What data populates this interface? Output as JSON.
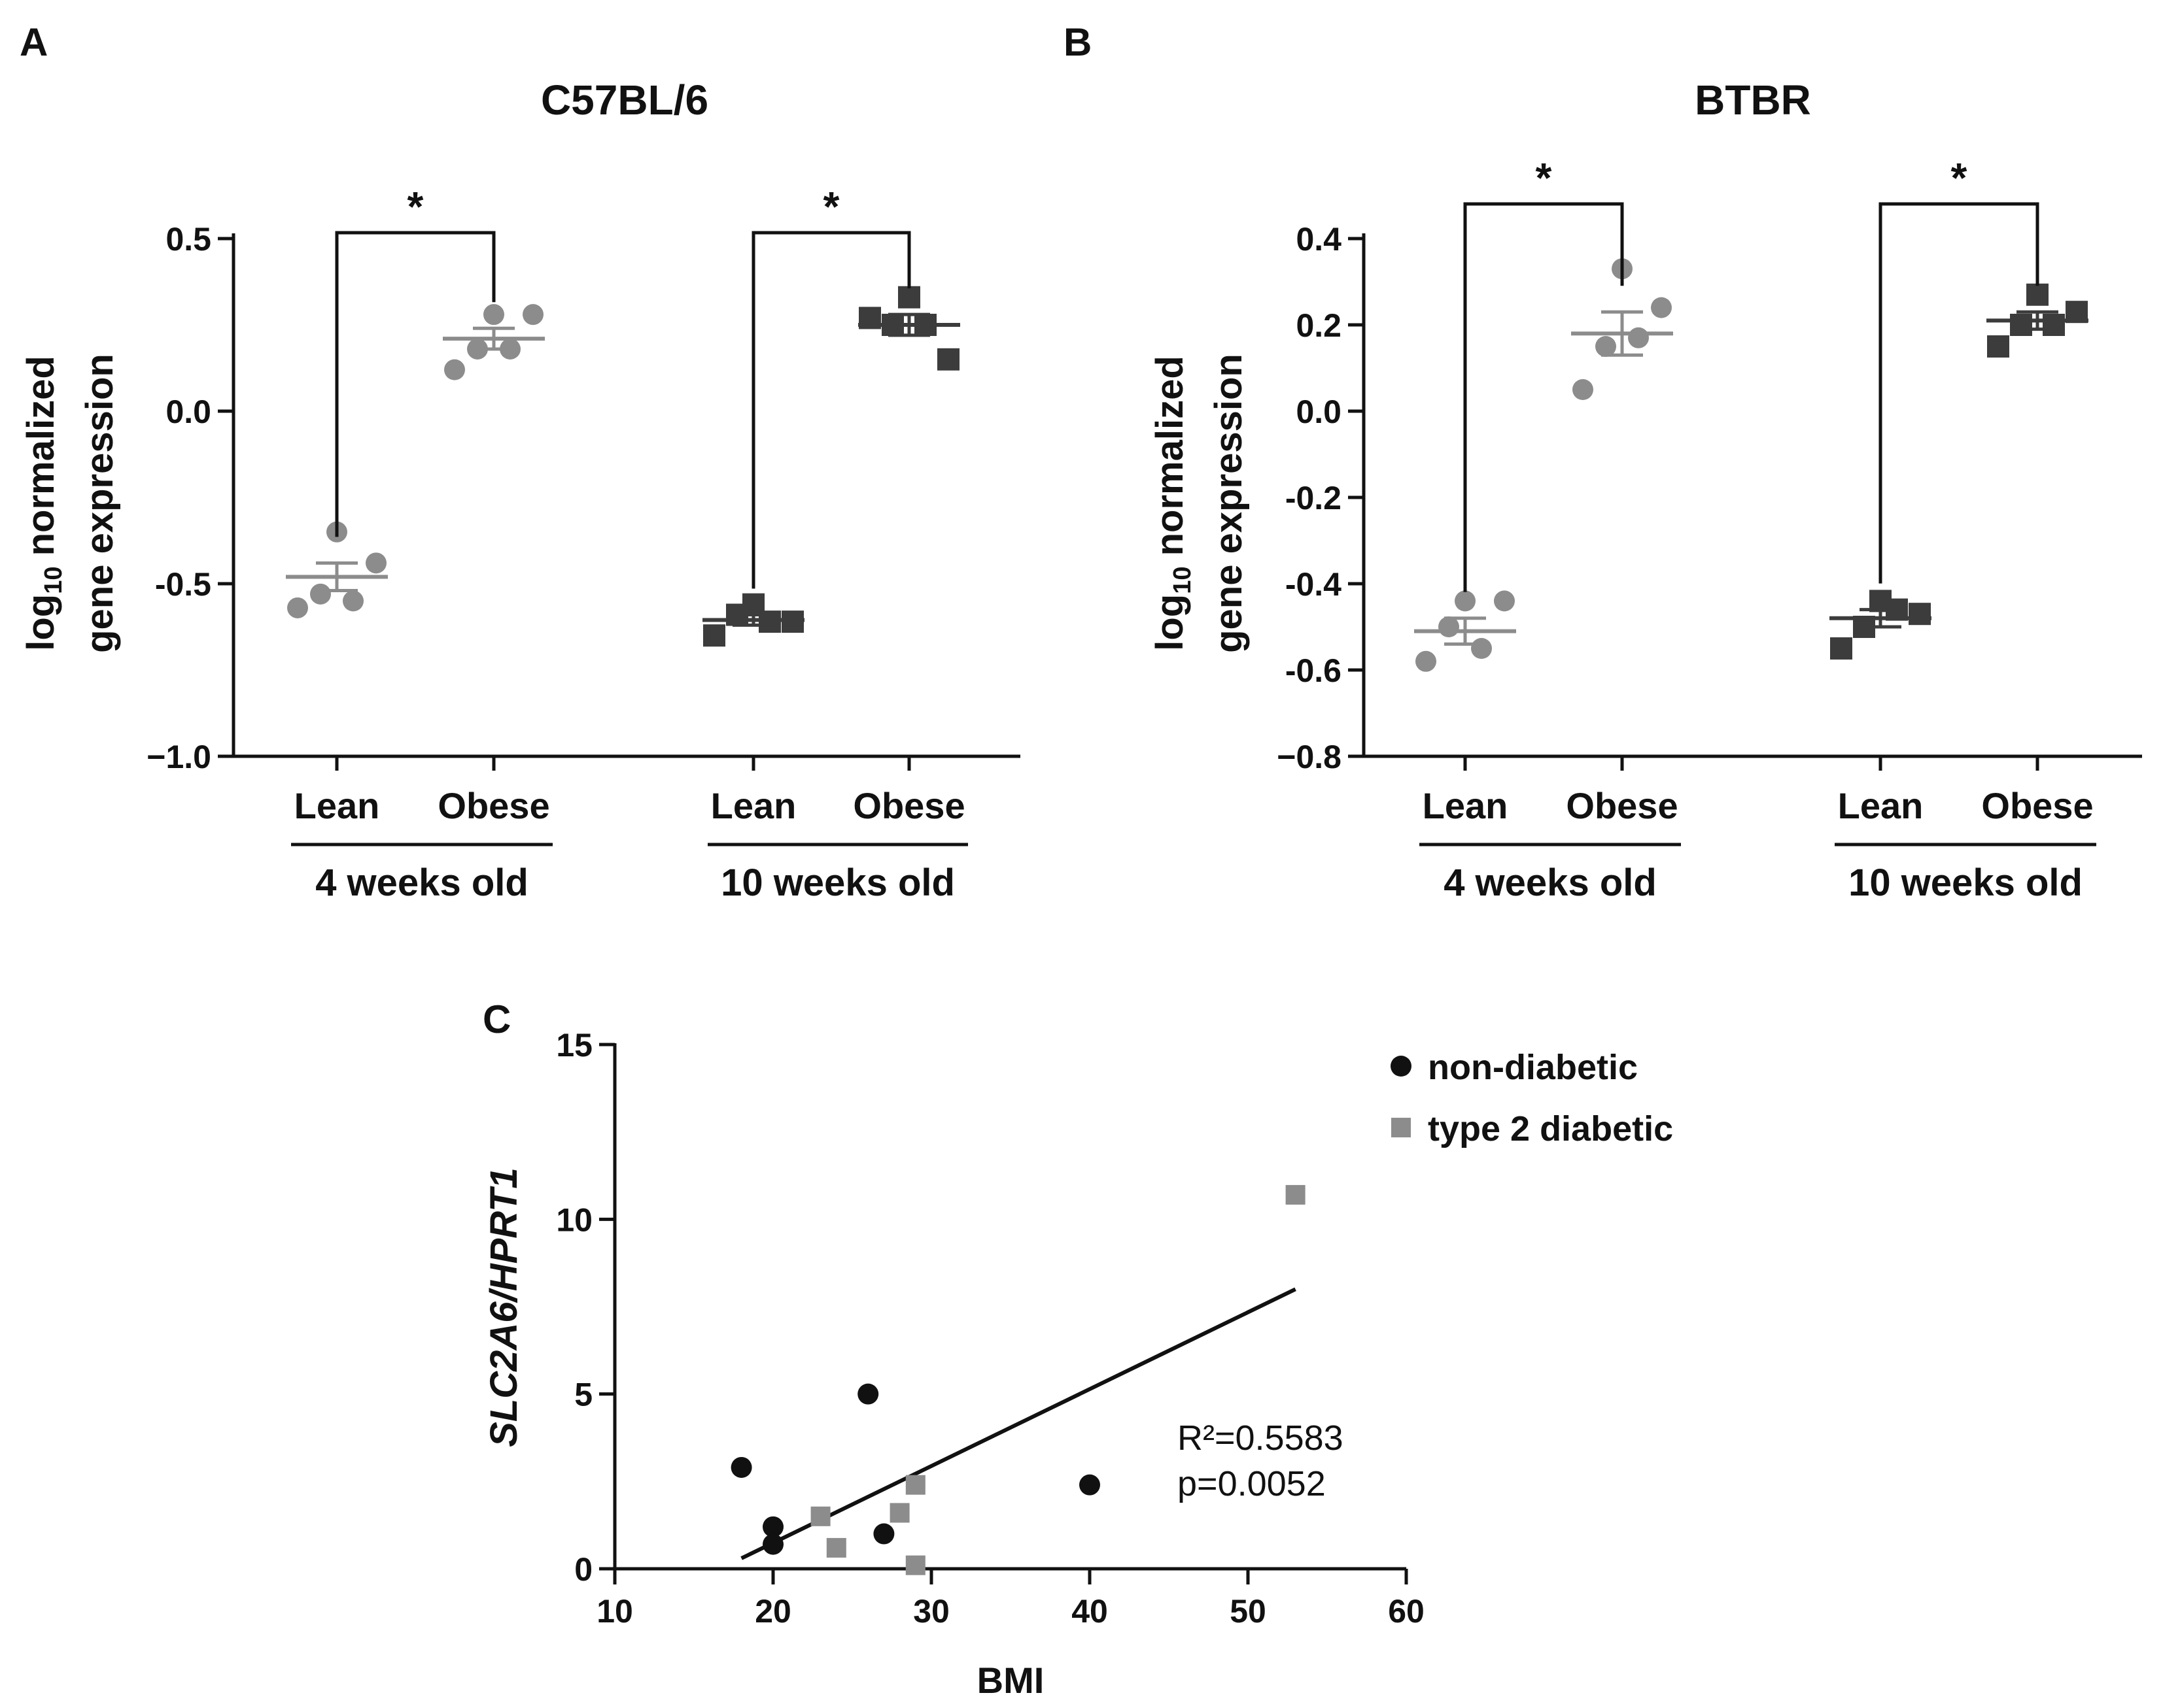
{
  "colors": {
    "axis": "#111111",
    "gray": "#8c8c8c",
    "dark": "#3c3c3c",
    "black": "#111111"
  },
  "chart_data": [
    {
      "panel": "A",
      "type": "scatter",
      "title": "C57BL/6",
      "ylabel_line1": "log",
      "ylabel_sub": "10",
      "ylabel_line1_rest": " normalized",
      "ylabel_line2": "gene expression",
      "ylim": [
        -1.0,
        0.5
      ],
      "yticks": [
        0.5,
        0.0,
        -0.5,
        -1.0
      ],
      "ytick_labels": [
        "0.5",
        "0.0",
        "-0.5",
        "−1.0"
      ],
      "groups": [
        {
          "label": "Lean",
          "age": "4 weeks old",
          "marker": "circle",
          "color": "gray",
          "values": [
            -0.57,
            -0.35,
            -0.44,
            -0.53,
            -0.55
          ],
          "mean": -0.48,
          "sem": 0.04
        },
        {
          "label": "Obese",
          "age": "4 weeks old",
          "marker": "circle",
          "color": "gray",
          "values": [
            0.12,
            0.28,
            0.28,
            0.18,
            0.18
          ],
          "mean": 0.21,
          "sem": 0.03
        },
        {
          "label": "Lean",
          "age": "10 weeks old",
          "marker": "square",
          "color": "dark",
          "values": [
            -0.65,
            -0.56,
            -0.61,
            -0.59,
            -0.61
          ],
          "mean": -0.605,
          "sem": 0.015
        },
        {
          "label": "Obese",
          "age": "10 weeks old",
          "marker": "square",
          "color": "dark",
          "values": [
            0.27,
            0.33,
            0.15,
            0.25,
            0.25
          ],
          "mean": 0.25,
          "sem": 0.03
        }
      ],
      "age_groups": [
        "4 weeks old",
        "10 weeks old"
      ],
      "significance": [
        {
          "from": 0,
          "to": 1,
          "label": "*"
        },
        {
          "from": 2,
          "to": 3,
          "label": "*"
        }
      ]
    },
    {
      "panel": "B",
      "type": "scatter",
      "title": "BTBR",
      "ylabel_line1": "log",
      "ylabel_sub": "10",
      "ylabel_line1_rest": " normalized",
      "ylabel_line2": "gene expression",
      "ylim": [
        -0.8,
        0.4
      ],
      "yticks": [
        0.4,
        0.2,
        0.0,
        -0.2,
        -0.4,
        -0.6,
        -0.8
      ],
      "ytick_labels": [
        "0.4",
        "0.2",
        "0.0",
        "-0.2",
        "-0.4",
        "-0.6",
        "−0.8"
      ],
      "groups": [
        {
          "label": "Lean",
          "age": "4 weeks old",
          "marker": "circle",
          "color": "gray",
          "values": [
            -0.58,
            -0.44,
            -0.44,
            -0.5,
            -0.55
          ],
          "mean": -0.51,
          "sem": 0.03
        },
        {
          "label": "Obese",
          "age": "4 weeks old",
          "marker": "circle",
          "color": "gray",
          "values": [
            0.05,
            0.33,
            0.24,
            0.15,
            0.17
          ],
          "mean": 0.18,
          "sem": 0.05
        },
        {
          "label": "Lean",
          "age": "10 weeks old",
          "marker": "square",
          "color": "dark",
          "values": [
            -0.55,
            -0.44,
            -0.47,
            -0.5,
            -0.46
          ],
          "mean": -0.48,
          "sem": 0.02
        },
        {
          "label": "Obese",
          "age": "10 weeks old",
          "marker": "square",
          "color": "dark",
          "values": [
            0.15,
            0.27,
            0.23,
            0.2,
            0.2
          ],
          "mean": 0.21,
          "sem": 0.02
        }
      ],
      "age_groups": [
        "4 weeks old",
        "10 weeks old"
      ],
      "significance": [
        {
          "from": 0,
          "to": 1,
          "label": "*"
        },
        {
          "from": 2,
          "to": 3,
          "label": "*"
        }
      ]
    },
    {
      "panel": "C",
      "type": "scatter",
      "xlabel": "BMI",
      "ylabel": "SLC2A6/HPRT1",
      "xlim": [
        10,
        60
      ],
      "ylim": [
        0,
        15
      ],
      "xticks": [
        10,
        20,
        30,
        40,
        50,
        60
      ],
      "yticks": [
        0,
        5,
        10,
        15
      ],
      "series": [
        {
          "name": "non-diabetic",
          "marker": "circle",
          "color": "black",
          "points": [
            [
              18,
              2.9
            ],
            [
              20,
              1.2
            ],
            [
              20,
              0.7
            ],
            [
              26,
              5.0
            ],
            [
              27,
              1.0
            ],
            [
              40,
              2.4
            ]
          ]
        },
        {
          "name": "type 2 diabetic",
          "marker": "square",
          "color": "gray",
          "points": [
            [
              23,
              1.5
            ],
            [
              24,
              0.6
            ],
            [
              28,
              1.6
            ],
            [
              29,
              2.4
            ],
            [
              29,
              0.1
            ],
            [
              53,
              10.7
            ]
          ]
        }
      ],
      "fit": {
        "x": [
          18,
          53
        ],
        "y": [
          0.3,
          8.0
        ]
      },
      "annotation": [
        "R²=0.5583",
        "p=0.0052"
      ]
    }
  ]
}
